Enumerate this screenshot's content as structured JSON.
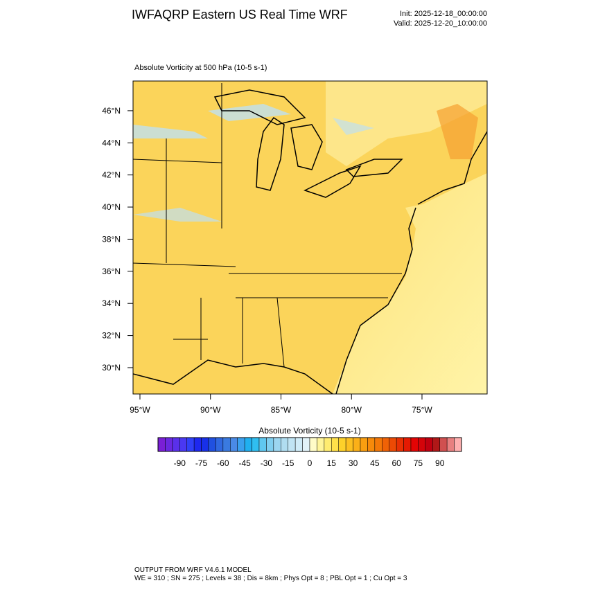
{
  "header": {
    "title": "IWFAQRP Eastern US Real Time WRF",
    "init": "Init: 2025-12-18_00:00:00",
    "valid": "Valid: 2025-12-20_10:00:00"
  },
  "map": {
    "subtitle": "Absolute Vorticity at 500 hPa   (10-5 s-1)",
    "latlim": [
      28.36,
      47.85
    ],
    "lonlim": [
      -95.49,
      -70.38
    ],
    "lat_ticks": [
      {
        "value": 46,
        "label": "46°N"
      },
      {
        "value": 44,
        "label": "44°N"
      },
      {
        "value": 42,
        "label": "42°N"
      },
      {
        "value": 40,
        "label": "40°N"
      },
      {
        "value": 38,
        "label": "38°N"
      },
      {
        "value": 36,
        "label": "36°N"
      },
      {
        "value": 34,
        "label": "34°N"
      },
      {
        "value": 32,
        "label": "32°N"
      },
      {
        "value": 30,
        "label": "30°N"
      }
    ],
    "lon_ticks": [
      {
        "value": -95,
        "label": "95°W"
      },
      {
        "value": -90,
        "label": "90°W"
      },
      {
        "value": -85,
        "label": "85°W"
      },
      {
        "value": -80,
        "label": "80°W"
      },
      {
        "value": -75,
        "label": "75°W"
      }
    ]
  },
  "colorbar": {
    "title": "Absolute Vorticity  (10-5 s-1)",
    "lim": [
      -105,
      105
    ],
    "ticks": [
      -90,
      -75,
      -60,
      -45,
      -30,
      -15,
      0,
      15,
      30,
      45,
      60,
      75,
      90
    ],
    "colors": [
      "#7a1fd6",
      "#6a28e0",
      "#5a30ea",
      "#4a38f2",
      "#3040f8",
      "#1e28f0",
      "#1830e8",
      "#2050e0",
      "#3068e0",
      "#3a7ae0",
      "#4a8ae6",
      "#3aa0ee",
      "#20b0f0",
      "#30bef0",
      "#60c8f0",
      "#80cff0",
      "#9cd6f0",
      "#b0ddf0",
      "#c0e4f4",
      "#d0ecf8",
      "#e2f2f8",
      "#fffcc8",
      "#fff59a",
      "#ffec70",
      "#ffe14a",
      "#fdd12a",
      "#fcc020",
      "#fbb018",
      "#f99e10",
      "#f78a0a",
      "#f47808",
      "#f06206",
      "#ec4a04",
      "#e83003",
      "#e41a02",
      "#e40404",
      "#d4040a",
      "#c00010",
      "#b01818",
      "#d05050",
      "#e88080",
      "#ffb0b0"
    ]
  },
  "footer": {
    "line1": "OUTPUT FROM WRF V4.6.1 MODEL",
    "line2": "WE = 310 ; SN = 275 ; Levels = 38 ; Dis = 8km ; Phys Opt = 8 ; PBL Opt = 1 ; Cu Opt = 3"
  }
}
